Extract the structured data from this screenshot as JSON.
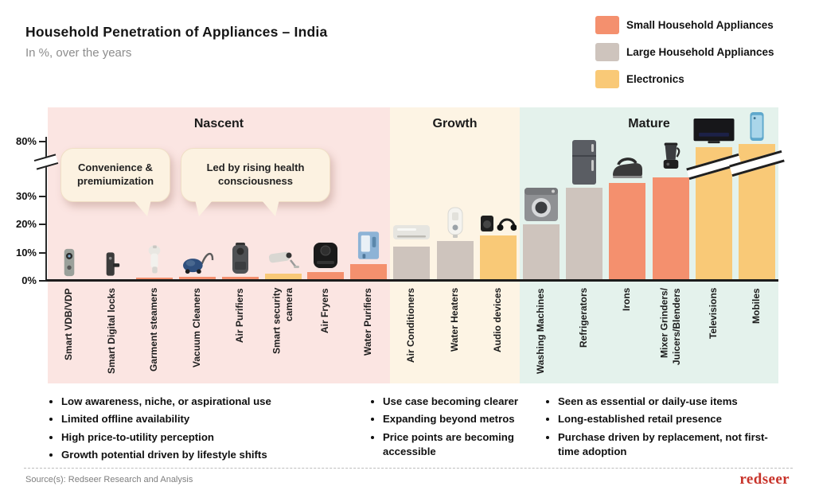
{
  "header": {
    "title": "Household Penetration of Appliances – India",
    "subtitle": "In %, over the years"
  },
  "legend": [
    {
      "label": "Small Household Appliances",
      "color": "#F4906E"
    },
    {
      "label": "Large Household Appliances",
      "color": "#CEC4BD"
    },
    {
      "label": "Electronics",
      "color": "#F9C977"
    }
  ],
  "chart_data": {
    "type": "bar",
    "title": "Household Penetration of Appliances – India",
    "unit": "%",
    "y_ticks": [
      {
        "label": "0%",
        "value": 0
      },
      {
        "label": "10%",
        "value": 10
      },
      {
        "label": "20%",
        "value": 20
      },
      {
        "label": "30%",
        "value": 30
      },
      {
        "label": "80%",
        "value": 80
      }
    ],
    "axis_break_between": [
      30,
      80
    ],
    "groups": [
      {
        "name": "Nascent",
        "color": "#FBE5E2"
      },
      {
        "name": "Growth",
        "color": "#FDF4E4"
      },
      {
        "name": "Mature",
        "color": "#E4F2EC"
      }
    ],
    "bars": [
      {
        "label": "Smart VDB/VDP",
        "group": "Nascent",
        "series": "Small Household Appliances",
        "value": 0.2,
        "icon": "doorbell"
      },
      {
        "label": "Smart Digital locks",
        "group": "Nascent",
        "series": "Small Household Appliances",
        "value": 0.3,
        "icon": "lock"
      },
      {
        "label": "Garment steamers",
        "group": "Nascent",
        "series": "Small Household Appliances",
        "value": 1,
        "icon": "steamer"
      },
      {
        "label": "Vacuum Cleaners",
        "group": "Nascent",
        "series": "Small Household Appliances",
        "value": 1.5,
        "icon": "vacuum"
      },
      {
        "label": "Air Purifiers",
        "group": "Nascent",
        "series": "Small Household Appliances",
        "value": 1.5,
        "icon": "airpurifier"
      },
      {
        "label": "Smart security camera",
        "group": "Nascent",
        "series": "Electronics",
        "value": 2.5,
        "icon": "cctv"
      },
      {
        "label": "Air Fryers",
        "group": "Nascent",
        "series": "Small Household Appliances",
        "value": 3,
        "icon": "airfryer"
      },
      {
        "label": "Water Purifiers",
        "group": "Nascent",
        "series": "Small Household Appliances",
        "value": 6,
        "icon": "waterpurifier"
      },
      {
        "label": "Air Conditioners",
        "group": "Growth",
        "series": "Large Household Appliances",
        "value": 12,
        "icon": "ac"
      },
      {
        "label": "Water Heaters",
        "group": "Growth",
        "series": "Large Household Appliances",
        "value": 14,
        "icon": "heater"
      },
      {
        "label": "Audio devices",
        "group": "Growth",
        "series": "Electronics",
        "value": 16,
        "icon": "audio"
      },
      {
        "label": "Washing Machines",
        "group": "Mature",
        "series": "Large Household Appliances",
        "value": 20,
        "icon": "washer"
      },
      {
        "label": "Refrigerators",
        "group": "Mature",
        "series": "Large Household Appliances",
        "value": 38,
        "icon": "fridge"
      },
      {
        "label": "Irons",
        "group": "Mature",
        "series": "Small Household Appliances",
        "value": 42,
        "icon": "iron"
      },
      {
        "label": "Mixer Grinders/ Juicers/Blenders",
        "group": "Mature",
        "series": "Small Household Appliances",
        "value": 47,
        "icon": "mixer"
      },
      {
        "label": "Televisions",
        "group": "Mature",
        "series": "Electronics",
        "value": 75,
        "truncated": true,
        "icon": "tv"
      },
      {
        "label": "Mobiles",
        "group": "Mature",
        "series": "Electronics",
        "value": 78,
        "truncated": true,
        "icon": "mobile"
      }
    ],
    "note": "Y-axis broken between 30% and 80%; Televisions and Mobiles bars are drawn truncated (break marks), values estimated from the broken axis"
  },
  "callouts": [
    {
      "text": "Convenience & premiumization"
    },
    {
      "text": "Led by rising health consciousness"
    }
  ],
  "stage_notes": [
    {
      "group": "Nascent",
      "bullets": [
        "Low awareness, niche, or aspirational use",
        "Limited offline availability",
        "High price-to-utility perception",
        "Growth potential driven by lifestyle shifts"
      ]
    },
    {
      "group": "Growth",
      "bullets": [
        "Use case becoming clearer",
        "Expanding beyond metros",
        "Price points are becoming accessible"
      ]
    },
    {
      "group": "Mature",
      "bullets": [
        "Seen as essential or daily-use items",
        "Long-established retail presence",
        "Purchase driven by replacement, not first-time adoption"
      ]
    }
  ],
  "footer": {
    "source": "Source(s): Redseer Research and Analysis",
    "brand": "redseer"
  }
}
